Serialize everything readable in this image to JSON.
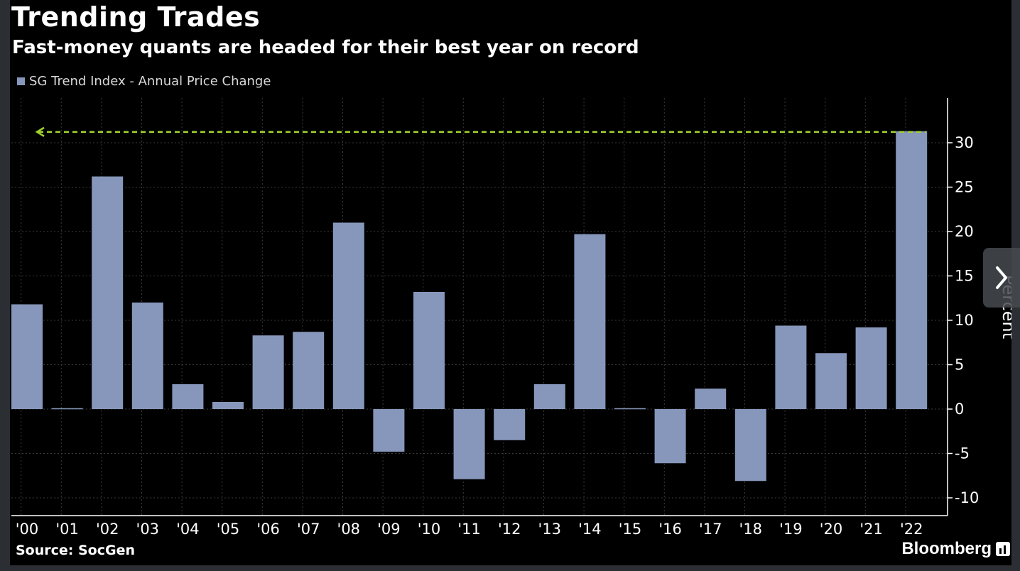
{
  "chart_data": {
    "type": "bar",
    "title": "Trending Trades",
    "subtitle": "Fast-money quants are headed for their best year on record",
    "legend": [
      "SG Trend Index - Annual Price Change"
    ],
    "legend_placement": "top-left",
    "ylabel": "Percent",
    "ylim": [
      -12,
      35
    ],
    "yticks": [
      -10,
      -5,
      0,
      5,
      10,
      15,
      20,
      25,
      30
    ],
    "ytick_labels": [
      "-10",
      "-5",
      "0",
      "5",
      "10",
      "15",
      "20",
      "25",
      "30"
    ],
    "categories": [
      "'00",
      "'01",
      "'02",
      "'03",
      "'04",
      "'05",
      "'06",
      "'07",
      "'08",
      "'09",
      "'10",
      "'11",
      "'12",
      "'13",
      "'14",
      "'15",
      "'16",
      "'17",
      "'18",
      "'19",
      "'20",
      "'21",
      "'22"
    ],
    "series": [
      {
        "name": "SG Trend Index - Annual Price Change",
        "color": "#8797bb",
        "values": [
          11.8,
          0.1,
          26.2,
          12.0,
          2.8,
          0.8,
          8.3,
          8.7,
          21.0,
          -4.8,
          13.2,
          -7.9,
          -3.5,
          2.8,
          19.7,
          0.1,
          -6.1,
          2.3,
          -8.1,
          9.4,
          6.3,
          9.2,
          31.3
        ]
      }
    ],
    "reference_line": {
      "value": 31.3,
      "color": "#9fd22e",
      "style": "dashed-arrow"
    },
    "grid": true,
    "source": "Source: SocGen",
    "brand": "Bloomberg"
  },
  "colors": {
    "background": "#000000",
    "bar": "#8797bb",
    "grid": "#3a3a3a",
    "text": "#ffffff",
    "reference": "#9fd22e"
  },
  "nav": {
    "next_icon": "chevron-right-icon"
  }
}
